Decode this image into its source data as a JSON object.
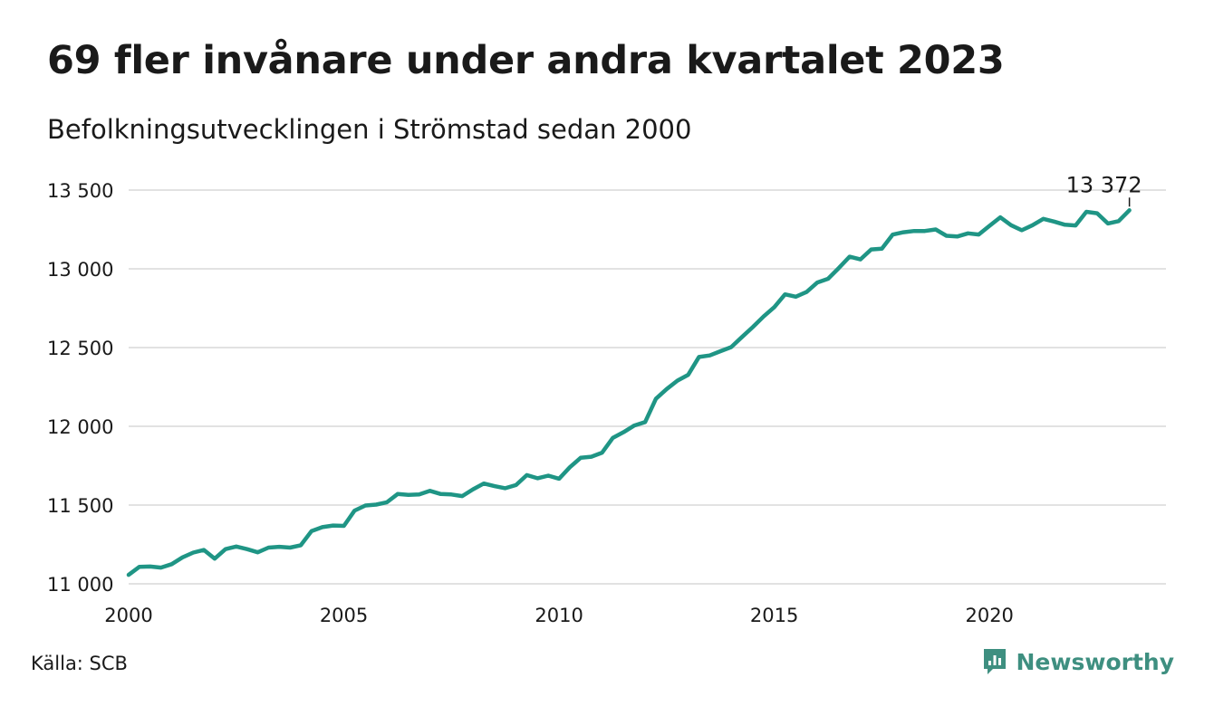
{
  "header": {
    "title": "69 fler invånare under andra kvartalet 2023",
    "subtitle": "Befolkningsutvecklingen i Strömstad sedan 2000"
  },
  "footer": {
    "source": "Källa: SCB",
    "brand": "Newsworthy",
    "brand_color": "#3e8f80"
  },
  "chart_data": {
    "type": "line",
    "title": "69 fler invånare under andra kvartalet 2023",
    "subtitle": "Befolkningsutvecklingen i Strömstad sedan 2000",
    "xlabel": "",
    "ylabel": "",
    "xlim": [
      2000,
      2024.1
    ],
    "ylim": [
      11000,
      13500
    ],
    "yticks": [
      11000,
      11500,
      12000,
      12500,
      13000,
      13500
    ],
    "ytick_labels": [
      "11 000",
      "11 500",
      "12 000",
      "12 500",
      "13 000",
      "13 500"
    ],
    "xticks": [
      2000,
      2005,
      2010,
      2015,
      2020
    ],
    "xtick_labels": [
      "2000",
      "2005",
      "2010",
      "2015",
      "2020"
    ],
    "grid": "horizontal",
    "line_color": "#1f9585",
    "end_label": "13 372",
    "series": [
      {
        "x": [
          2000.0,
          2000.25,
          2000.5,
          2000.75,
          2001.0,
          2001.25,
          2001.5,
          2001.75,
          2002.0,
          2002.25,
          2002.5,
          2002.75,
          2003.0,
          2003.25,
          2003.5,
          2003.75,
          2004.0,
          2004.25,
          2004.5,
          2004.75,
          2005.0,
          2005.25,
          2005.5,
          2005.75,
          2006.0,
          2006.25,
          2006.5,
          2006.75,
          2007.0,
          2007.25,
          2007.5,
          2007.75,
          2008.0,
          2008.25,
          2008.5,
          2008.75,
          2009.0,
          2009.25,
          2009.5,
          2009.75,
          2010.0,
          2010.25,
          2010.5,
          2010.75,
          2011.0,
          2011.25,
          2011.5,
          2011.75,
          2012.0,
          2012.25,
          2012.5,
          2012.75,
          2013.0,
          2013.25,
          2013.5,
          2013.75,
          2014.0,
          2014.25,
          2014.5,
          2014.75,
          2015.0,
          2015.25,
          2015.5,
          2015.75,
          2016.0,
          2016.25,
          2016.5,
          2016.75,
          2017.0,
          2017.25,
          2017.5,
          2017.75,
          2018.0,
          2018.25,
          2018.5,
          2018.75,
          2019.0,
          2019.25,
          2019.5,
          2019.75,
          2020.0,
          2020.25,
          2020.5,
          2020.75,
          2021.0,
          2021.25,
          2021.5,
          2021.75,
          2022.0,
          2022.25,
          2022.5,
          2022.75,
          2023.0,
          2023.25
        ],
        "values": [
          11057,
          11108,
          11110,
          11103,
          11125,
          11168,
          11198,
          11215,
          11160,
          11220,
          11237,
          11220,
          11200,
          11230,
          11235,
          11230,
          11245,
          11335,
          11360,
          11370,
          11368,
          11465,
          11497,
          11503,
          11518,
          11570,
          11565,
          11567,
          11590,
          11570,
          11567,
          11557,
          11600,
          11637,
          11620,
          11607,
          11627,
          11690,
          11670,
          11687,
          11667,
          11740,
          11800,
          11807,
          11833,
          11927,
          11963,
          12005,
          12027,
          12175,
          12237,
          12290,
          12327,
          12440,
          12450,
          12477,
          12503,
          12567,
          12630,
          12697,
          12757,
          12838,
          12823,
          12853,
          12913,
          12937,
          13005,
          13077,
          13060,
          13123,
          13128,
          13217,
          13232,
          13240,
          13240,
          13250,
          13210,
          13205,
          13225,
          13218,
          13273,
          13327,
          13277,
          13245,
          13277,
          13317,
          13300,
          13280,
          13275,
          13362,
          13353,
          13288,
          13303,
          13372
        ]
      }
    ]
  }
}
